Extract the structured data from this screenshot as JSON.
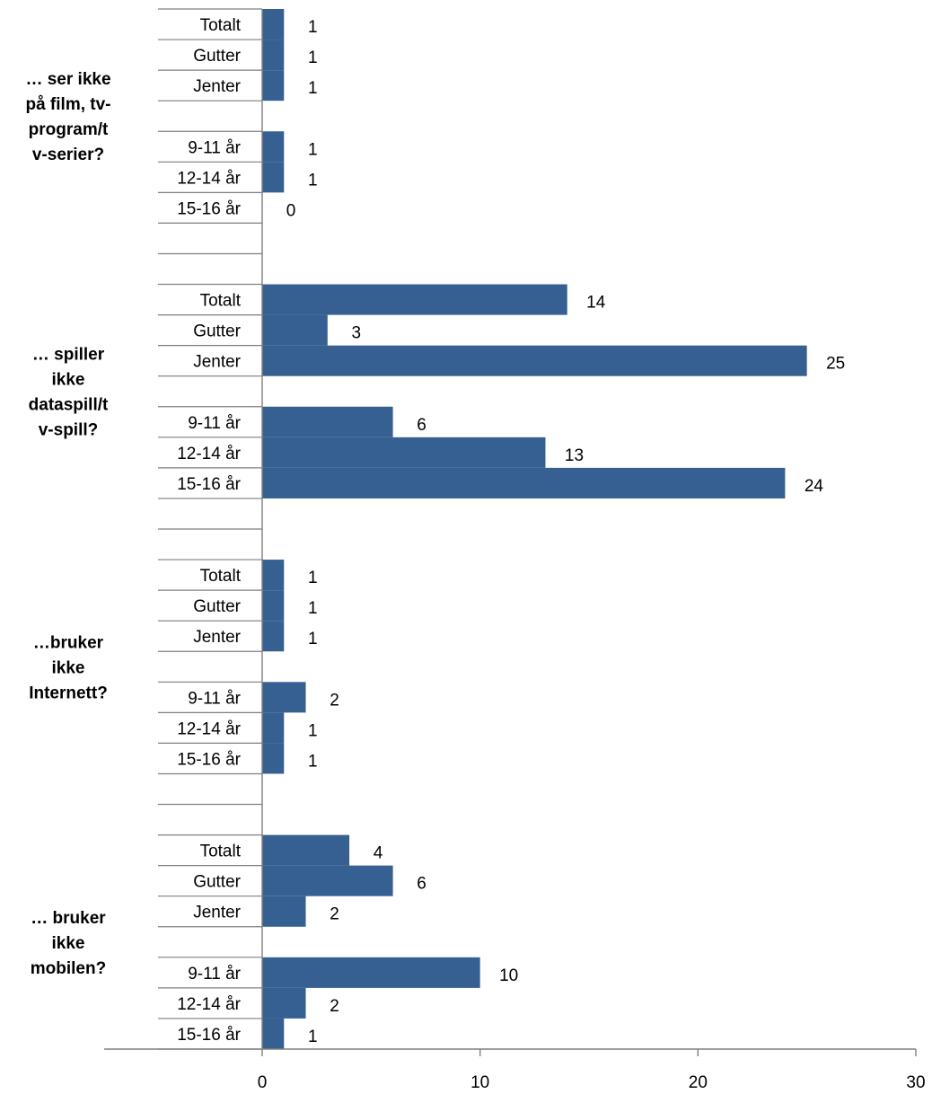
{
  "chart_data": {
    "type": "bar",
    "orientation": "horizontal",
    "bar_color": "#376092",
    "xlim": [
      0,
      30
    ],
    "x_ticks": [
      "0",
      "10",
      "20",
      "30"
    ],
    "grid": false,
    "groups": [
      {
        "label_lines": [
          "… ser ikke",
          "på film, tv-",
          "program/t",
          "v-serier?"
        ],
        "rows": [
          {
            "category": "Totalt",
            "value": 1
          },
          {
            "category": "Gutter",
            "value": 1
          },
          {
            "category": "Jenter",
            "value": 1
          },
          {
            "category": "",
            "value": null
          },
          {
            "category": "9-11 år",
            "value": 1
          },
          {
            "category": "12-14 år",
            "value": 1
          },
          {
            "category": "15-16 år",
            "value": 0
          },
          {
            "category": "",
            "value": null
          },
          {
            "category": "",
            "value": null
          }
        ]
      },
      {
        "label_lines": [
          "… spiller",
          "ikke",
          "dataspill/t",
          "v-spill?"
        ],
        "rows": [
          {
            "category": "Totalt",
            "value": 14
          },
          {
            "category": "Gutter",
            "value": 3
          },
          {
            "category": "Jenter",
            "value": 25
          },
          {
            "category": "",
            "value": null
          },
          {
            "category": "9-11 år",
            "value": 6
          },
          {
            "category": "12-14 år",
            "value": 13
          },
          {
            "category": "15-16 år",
            "value": 24
          },
          {
            "category": "",
            "value": null
          },
          {
            "category": "",
            "value": null
          }
        ]
      },
      {
        "label_lines": [
          "…bruker",
          "ikke",
          "Internett?"
        ],
        "rows": [
          {
            "category": "Totalt",
            "value": 1
          },
          {
            "category": "Gutter",
            "value": 1
          },
          {
            "category": "Jenter",
            "value": 1
          },
          {
            "category": "",
            "value": null
          },
          {
            "category": "9-11 år",
            "value": 2
          },
          {
            "category": "12-14 år",
            "value": 1
          },
          {
            "category": "15-16 år",
            "value": 1
          },
          {
            "category": "",
            "value": null
          },
          {
            "category": "",
            "value": null
          }
        ]
      },
      {
        "label_lines": [
          "… bruker",
          "ikke",
          "mobilen?"
        ],
        "rows": [
          {
            "category": "Totalt",
            "value": 4
          },
          {
            "category": "Gutter",
            "value": 6
          },
          {
            "category": "Jenter",
            "value": 2
          },
          {
            "category": "",
            "value": null
          },
          {
            "category": "9-11 år",
            "value": 10
          },
          {
            "category": "12-14 år",
            "value": 2
          },
          {
            "category": "15-16 år",
            "value": 1
          }
        ]
      }
    ]
  }
}
